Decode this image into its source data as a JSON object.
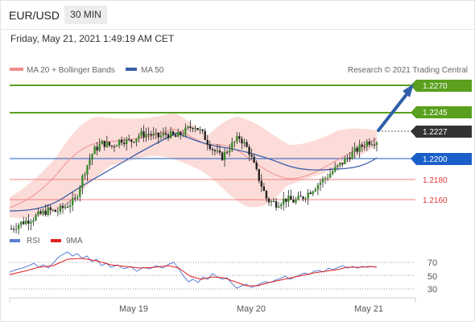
{
  "header": {
    "symbol": "EUR/USD",
    "timeframe": "30 MIN",
    "datetime": "Friday, May 21, 2021 1:49:19 AM CET"
  },
  "legend": {
    "ma20_label": "MA 20 + Bollinger Bands",
    "ma50_label": "MA 50",
    "ma20_color": "#f08c8c",
    "ma50_color": "#3b5ea8",
    "copyright": "Research © 2021 Trading Central"
  },
  "levels": {
    "resistance_1": "1.2270",
    "resistance_2": "1.2245",
    "current": "1.2227",
    "pivot": "1.2200",
    "support_1": "1.2180",
    "support_2": "1.2160"
  },
  "colors": {
    "resistance": "#5aa01e",
    "current": "#333333",
    "pivot": "#1a5fc8",
    "support": "#e03c3c",
    "arrow": "#2f5fa8",
    "band": "#fcd8d4"
  },
  "rsi_panel": {
    "rsi_label": "RSI",
    "ma_label": "9MA",
    "ticks": [
      "70",
      "50",
      "30"
    ]
  },
  "x_axis": {
    "labels": [
      "May 19",
      "May 20",
      "May 21"
    ]
  },
  "chart_data": {
    "type": "candlestick",
    "y_range": [
      1.2141,
      1.2283
    ],
    "price_levels": [
      1.227,
      1.2245,
      1.2227,
      1.22,
      1.218,
      1.216
    ],
    "close_series_approx": [
      1.215,
      1.2155,
      1.2158,
      1.2162,
      1.2166,
      1.2165,
      1.217,
      1.2175,
      1.22,
      1.2218,
      1.2225,
      1.2222,
      1.2228,
      1.2226,
      1.2232,
      1.2233,
      1.223,
      1.2233,
      1.223,
      1.2235,
      1.2241,
      1.2232,
      1.222,
      1.2212,
      1.2222,
      1.223,
      1.2218,
      1.2196,
      1.2175,
      1.2172,
      1.2176,
      1.2174,
      1.2178,
      1.2185,
      1.2192,
      1.2199,
      1.2206,
      1.2214,
      1.222,
      1.2226,
      1.2227
    ],
    "ma20_series_approx": [
      1.215,
      1.2158,
      1.2168,
      1.2185,
      1.2205,
      1.2218,
      1.2225,
      1.2228,
      1.223,
      1.2231,
      1.2229,
      1.2225,
      1.2218,
      1.221,
      1.2198,
      1.2188,
      1.218,
      1.2178,
      1.2182,
      1.219,
      1.2202,
      1.2212,
      1.222
    ],
    "ma50_series_approx": [
      1.2145,
      1.2155,
      1.2168,
      1.2182,
      1.2195,
      1.2208,
      1.222,
      1.2228,
      1.2222,
      1.2215,
      1.221,
      1.2205,
      1.22,
      1.2193,
      1.2196,
      1.2198,
      1.2205
    ],
    "rsi_series_approx": [
      45,
      50,
      48,
      55,
      60,
      70,
      75,
      72,
      68,
      62,
      64,
      58,
      60,
      63,
      55,
      50,
      45,
      40,
      35,
      30,
      32,
      35,
      40,
      45,
      50,
      55,
      58,
      62,
      64,
      65
    ],
    "x_labels": [
      "May 19",
      "May 20",
      "May 21"
    ],
    "rsi_ticks": [
      70,
      50,
      30
    ]
  }
}
